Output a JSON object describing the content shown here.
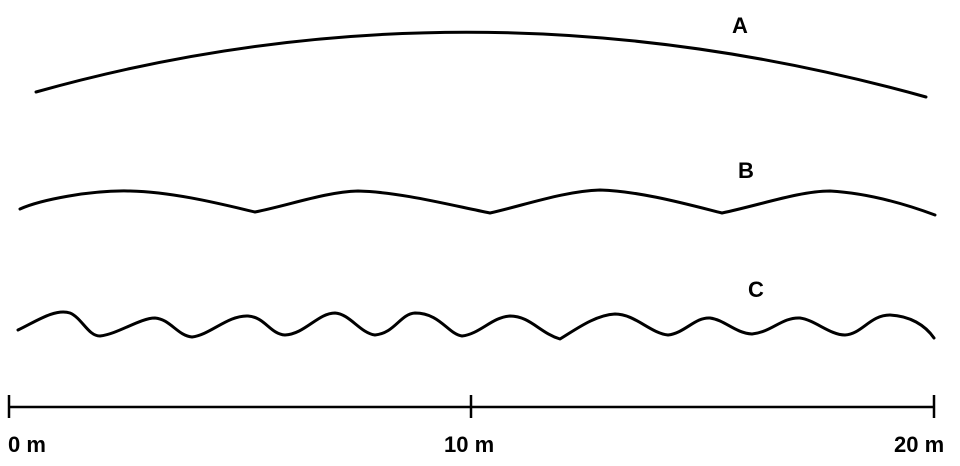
{
  "waves": [
    {
      "label": "A"
    },
    {
      "label": "B"
    },
    {
      "label": "C"
    }
  ],
  "scale": {
    "unit": "m",
    "ticks": [
      "0 m",
      "10 m",
      "20 m"
    ]
  }
}
